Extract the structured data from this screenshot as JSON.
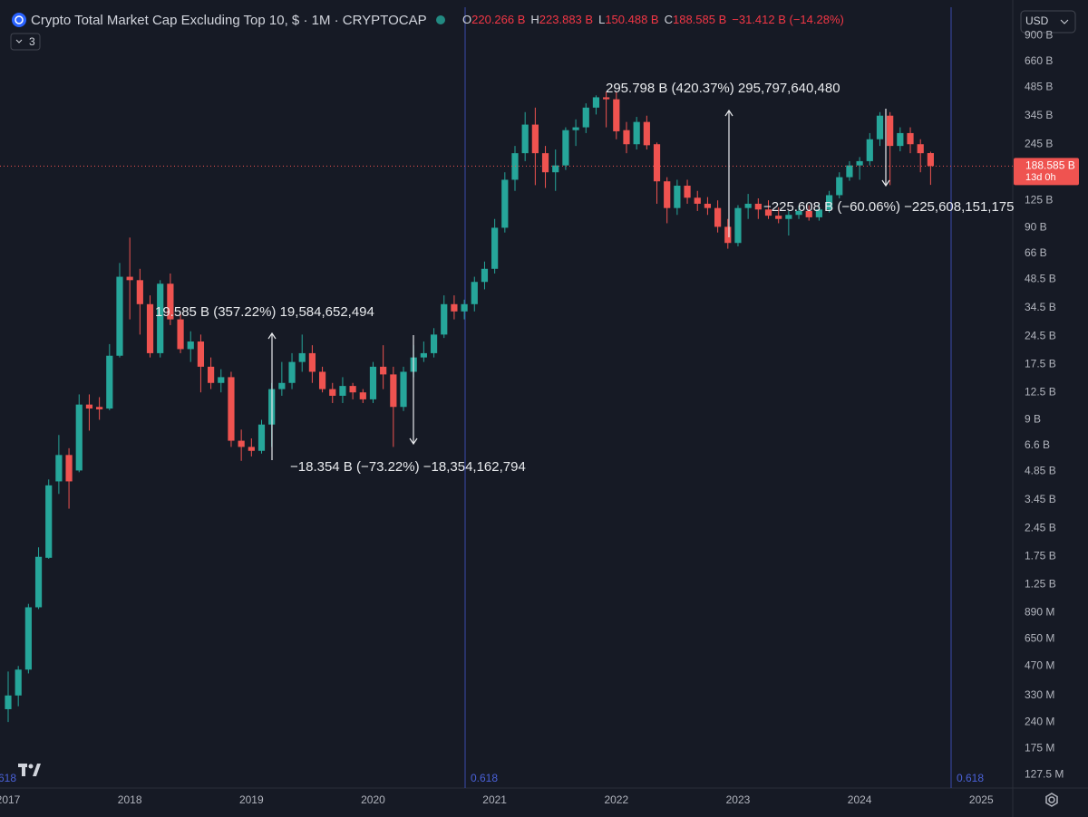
{
  "chart_data": {
    "type": "candlestick",
    "title": "Crypto Total Market Cap Excluding Top 10, $ · 1M · CRYPTOCAP",
    "ohlc_legend": [
      {
        "key": "O",
        "text": "220.266 B"
      },
      {
        "key": "H",
        "text": "223.883 B"
      },
      {
        "key": "L",
        "text": "150.488 B"
      },
      {
        "key": "C",
        "text": "188.585 B"
      }
    ],
    "change": "−31.412 B (−14.28%)",
    "indicator_count": "3",
    "currency": "USD",
    "price_tag": "188.585 B",
    "countdown": "13d 0h",
    "fib_label": "0.618",
    "annotations": [
      "19.585 B (357.22%) 19,584,652,494",
      "−18.354 B (−73.22%) −18,354,162,794",
      "295.798 B (420.37%) 295,797,640,480",
      "−225.608 B (−60.06%) −225,608,151,175"
    ],
    "categories": [
      "2017",
      null,
      null,
      null,
      null,
      null,
      null,
      null,
      null,
      null,
      null,
      null,
      "2018",
      null,
      null,
      null,
      null,
      null,
      null,
      null,
      null,
      null,
      null,
      null,
      "2019",
      null,
      null,
      null,
      null,
      null,
      null,
      null,
      null,
      null,
      null,
      null,
      "2020",
      null,
      null,
      null,
      null,
      null,
      null,
      null,
      null,
      null,
      null,
      null,
      "2021",
      null,
      null,
      null,
      null,
      null,
      null,
      null,
      null,
      null,
      null,
      null,
      "2022",
      null,
      null,
      null,
      null,
      null,
      null,
      null,
      null,
      null,
      null,
      null,
      "2023",
      null,
      null,
      null,
      null,
      null,
      null,
      null,
      null,
      null,
      null,
      null,
      "2024",
      null,
      null,
      null,
      null,
      null,
      null,
      null,
      null,
      null,
      null,
      null,
      "2025",
      null
    ],
    "open": [
      0.28,
      0.33,
      0.45,
      0.95,
      1.72,
      4.3,
      5.9,
      4.9,
      10.8,
      10.5,
      10.3,
      19.4,
      50,
      48,
      36,
      20,
      46,
      30,
      21,
      23,
      17,
      14,
      15,
      7,
      6.5,
      6.2,
      8.5,
      13,
      14,
      18,
      20,
      16,
      13,
      12,
      13.5,
      12.5,
      11.5,
      17,
      15.5,
      10.5,
      16,
      19,
      20,
      25,
      36,
      33,
      36,
      47,
      55,
      90,
      160,
      220,
      310,
      220,
      175,
      190,
      290,
      300,
      380,
      430,
      420,
      290,
      245,
      320,
      245,
      157,
      114,
      149,
      129,
      120,
      114,
      91,
      75,
      114,
      120,
      112,
      104,
      100,
      105,
      110,
      102,
      112,
      133,
      165,
      190,
      200,
      260,
      345,
      240,
      280,
      245,
      220.266,
      null,
      null,
      null,
      null,
      null,
      null
    ],
    "high": [
      0.44,
      0.47,
      0.99,
      1.95,
      4.4,
      7.5,
      6.4,
      12.2,
      12.2,
      11.8,
      22.3,
      59,
      80,
      55,
      40,
      48,
      52,
      33,
      26,
      25,
      19,
      16.5,
      16,
      8,
      7.2,
      9,
      14,
      18,
      20,
      25,
      22,
      17,
      14,
      15,
      14,
      13,
      18,
      22,
      17,
      17,
      22,
      23,
      27,
      40,
      40,
      38,
      50,
      60,
      100,
      175,
      240,
      360,
      380,
      240,
      230,
      300,
      330,
      400,
      440,
      460,
      460,
      320,
      340,
      345,
      250,
      165,
      160,
      160,
      140,
      130,
      125,
      100,
      118,
      135,
      128,
      125,
      115,
      110,
      117,
      118,
      120,
      140,
      175,
      200,
      210,
      280,
      360,
      360,
      300,
      300,
      260,
      223.883,
      null,
      null,
      null,
      null,
      null,
      null
    ],
    "low": [
      0.24,
      0.29,
      0.43,
      0.93,
      1.7,
      3.7,
      3.1,
      4.8,
      7.9,
      9,
      10.1,
      19,
      30,
      25,
      19,
      19,
      28,
      20,
      18,
      12.5,
      13,
      12.5,
      6.5,
      5.5,
      5.8,
      6,
      6.5,
      12,
      13,
      16,
      14,
      12.5,
      11,
      11,
      11.5,
      11,
      11,
      13,
      6.5,
      10,
      15,
      18,
      19,
      24,
      30,
      30,
      33,
      43,
      52,
      85,
      140,
      200,
      150,
      145,
      140,
      180,
      240,
      280,
      350,
      300,
      260,
      220,
      230,
      230,
      120,
      95,
      105,
      120,
      110,
      105,
      85,
      70,
      72,
      100,
      100,
      100,
      95,
      82,
      100,
      98,
      98,
      108,
      128,
      158,
      160,
      190,
      240,
      150,
      225,
      220,
      175,
      150.488,
      null,
      null,
      null,
      null,
      null,
      null
    ],
    "close": [
      0.33,
      0.45,
      0.95,
      1.74,
      4.1,
      5.9,
      4.3,
      10.8,
      10.3,
      10.2,
      19.4,
      50,
      48,
      36,
      20,
      46,
      30,
      21,
      23,
      17,
      14,
      15,
      7,
      6.5,
      6.2,
      8.5,
      13,
      14,
      18,
      20,
      16,
      13,
      12,
      13.5,
      12.5,
      11.5,
      17,
      15.5,
      10.5,
      16,
      19,
      20,
      25,
      36,
      33,
      36,
      47,
      55,
      90,
      160,
      220,
      310,
      220,
      175,
      190,
      290,
      300,
      380,
      430,
      420,
      286,
      245,
      320,
      242,
      157,
      114,
      149,
      129,
      120,
      114,
      91,
      75,
      114,
      120,
      112,
      104,
      100,
      105,
      110,
      102,
      112,
      133,
      165,
      190,
      200,
      260,
      345,
      240,
      280,
      245,
      220,
      188.585,
      null,
      null,
      null,
      null,
      null,
      null
    ],
    "up_color": "#26a69a",
    "down_color": "#ef5350",
    "log_scale": true,
    "grid": false,
    "ylim": [
      0.1088,
      1381
    ],
    "yticks": [
      {
        "value": 900,
        "label": "900 B"
      },
      {
        "value": 660,
        "label": "660 B"
      },
      {
        "value": 485,
        "label": "485 B"
      },
      {
        "value": 345,
        "label": "345 B"
      },
      {
        "value": 245,
        "label": "245 B"
      },
      {
        "value": 125,
        "label": "125 B"
      },
      {
        "value": 90,
        "label": "90 B"
      },
      {
        "value": 66,
        "label": "66 B"
      },
      {
        "value": 48.5,
        "label": "48.5 B"
      },
      {
        "value": 34.5,
        "label": "34.5 B"
      },
      {
        "value": 24.5,
        "label": "24.5 B"
      },
      {
        "value": 17.5,
        "label": "17.5 B"
      },
      {
        "value": 12.5,
        "label": "12.5 B"
      },
      {
        "value": 9,
        "label": "9 B"
      },
      {
        "value": 6.6,
        "label": "6.6 B"
      },
      {
        "value": 4.85,
        "label": "4.85 B"
      },
      {
        "value": 3.45,
        "label": "3.45 B"
      },
      {
        "value": 2.45,
        "label": "2.45 B"
      },
      {
        "value": 1.75,
        "label": "1.75 B"
      },
      {
        "value": 1.25,
        "label": "1.25 B"
      },
      {
        "value": 0.89,
        "label": "890 M"
      },
      {
        "value": 0.65,
        "label": "650 M"
      },
      {
        "value": 0.47,
        "label": "470 M"
      },
      {
        "value": 0.33,
        "label": "330 M"
      },
      {
        "value": 0.24,
        "label": "240 M"
      },
      {
        "value": 0.175,
        "label": "175 M"
      },
      {
        "value": 0.1275,
        "label": "127.5 M"
      }
    ]
  }
}
